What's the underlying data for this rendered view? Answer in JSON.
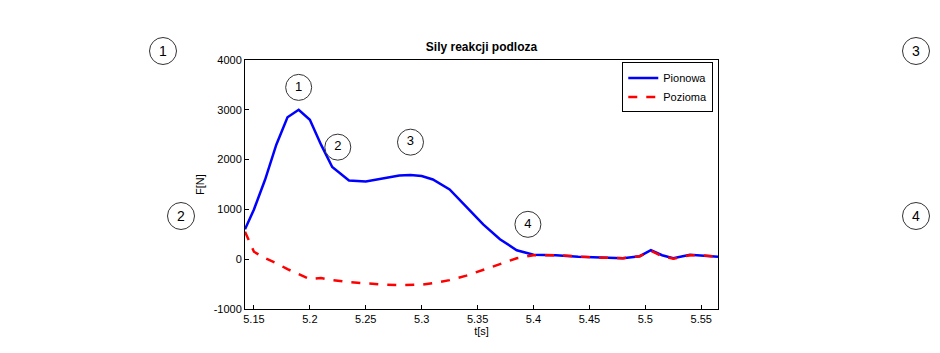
{
  "chart_data": {
    "type": "line",
    "title": "Sily reakcji podloza",
    "x_label": "t[s]",
    "y_label": "F[N]",
    "xlim": [
      5.142,
      5.565
    ],
    "xticks": [
      5.15,
      5.2,
      5.25,
      5.3,
      5.35,
      5.4,
      5.45,
      5.5,
      5.55
    ],
    "ylim": [
      -1000,
      4000
    ],
    "yticks": [
      -1000,
      0,
      1000,
      2000,
      3000,
      4000
    ],
    "grid": false,
    "legend": "top right",
    "x": [
      5.142,
      5.15,
      5.16,
      5.17,
      5.18,
      5.19,
      5.2,
      5.21,
      5.22,
      5.235,
      5.25,
      5.265,
      5.28,
      5.29,
      5.3,
      5.31,
      5.325,
      5.34,
      5.355,
      5.37,
      5.385,
      5.4,
      5.42,
      5.44,
      5.46,
      5.48,
      5.495,
      5.505,
      5.515,
      5.525,
      5.54,
      5.555,
      5.565
    ],
    "series": [
      {
        "name": "Pionowa",
        "color": "#0000ff",
        "line_style": "solid",
        "values": [
          600,
          1000,
          1600,
          2300,
          2850,
          3000,
          2800,
          2300,
          1850,
          1580,
          1560,
          1620,
          1680,
          1690,
          1670,
          1600,
          1400,
          1050,
          700,
          400,
          180,
          90,
          80,
          50,
          30,
          20,
          60,
          180,
          80,
          20,
          90,
          60,
          50
        ]
      },
      {
        "name": "Pozioma",
        "color": "#ff0000",
        "line_style": "dashed",
        "values": [
          550,
          150,
          20,
          -80,
          -200,
          -300,
          -400,
          -380,
          -420,
          -460,
          -490,
          -510,
          -520,
          -520,
          -510,
          -480,
          -420,
          -330,
          -220,
          -100,
          20,
          80,
          80,
          50,
          30,
          20,
          60,
          170,
          60,
          10,
          80,
          70,
          50
        ]
      }
    ],
    "annotations": [
      {
        "text": "1",
        "x": 5.19,
        "y": 3450
      },
      {
        "text": "2",
        "x": 5.225,
        "y": 2250
      },
      {
        "text": "3",
        "x": 5.29,
        "y": 2350
      },
      {
        "text": "4",
        "x": 5.395,
        "y": 700
      }
    ]
  },
  "panels": [
    "1",
    "2",
    "3",
    "4"
  ]
}
